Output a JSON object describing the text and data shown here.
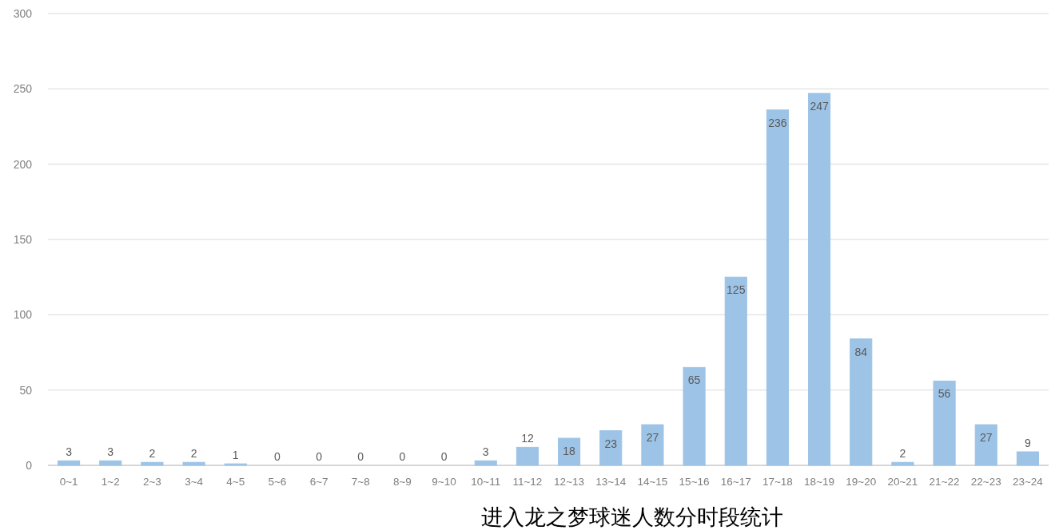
{
  "chart_data": {
    "type": "bar",
    "title": "进入龙之梦球迷人数分时段统计",
    "categories": [
      "0~1",
      "1~2",
      "2~3",
      "3~4",
      "4~5",
      "5~6",
      "6~7",
      "7~8",
      "8~9",
      "9~10",
      "10~11",
      "11~12",
      "12~13",
      "13~14",
      "14~15",
      "15~16",
      "16~17",
      "17~18",
      "18~19",
      "19~20",
      "20~21",
      "21~22",
      "22~23",
      "23~24"
    ],
    "values": [
      3,
      3,
      2,
      2,
      1,
      0,
      0,
      0,
      0,
      0,
      3,
      12,
      18,
      23,
      27,
      65,
      125,
      236,
      247,
      84,
      2,
      56,
      27,
      9
    ],
    "color": "#9dc3e6",
    "ylim": [
      0,
      300
    ],
    "yticks": [
      0,
      50,
      100,
      150,
      200,
      250,
      300
    ],
    "grid": "y",
    "data_labels": true
  }
}
